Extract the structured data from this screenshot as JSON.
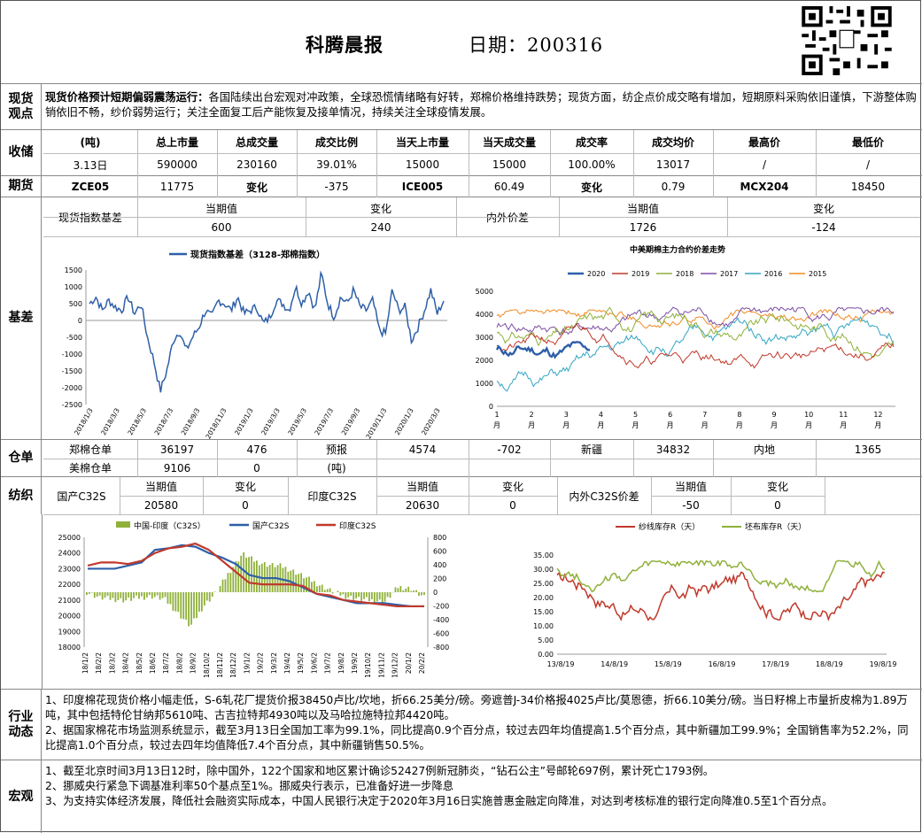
{
  "header": {
    "title": "科腾晨报",
    "date": "日期：200316"
  },
  "spot": {
    "label": "现货观点",
    "lead": "现货价格预计短期偏弱震荡运行：",
    "body": "各国陆续出台宏观对冲政策，全球恐慌情绪略有好转，郑棉价格维持跌势；现货方面，纺企点价成交略有增加，短期原料采购依旧谨慎，下游整体购销依旧不畅，纱价弱势运行；关注全面复工后产能恢复及接单情况，持续关注全球疫情发展。"
  },
  "storage": {
    "label": "收储",
    "headers": [
      "(吨)",
      "总上市量",
      "总成交量",
      "成交比例",
      "当天上市量",
      "当天成交量",
      "成交率",
      "成交均价",
      "最高价",
      "最低价"
    ],
    "values": [
      "3.13日",
      "590000",
      "230160",
      "39.01%",
      "15000",
      "15000",
      "100.00%",
      "13017",
      "/",
      "/"
    ]
  },
  "futures": {
    "label": "期货",
    "values": [
      "ZCE05",
      "11775",
      "变化",
      "-375",
      "ICE005",
      "60.49",
      "变化",
      "0.79",
      "MCX204",
      "18450"
    ]
  },
  "basis": {
    "label": "基差",
    "spot_index_label": "现货指数基差",
    "inner_outer_label": "内外价差",
    "col_current": "当期值",
    "col_change": "变化",
    "spot_current": "600",
    "spot_change": "240",
    "io_current": "1726",
    "io_change": "-124",
    "chart1": {
      "legend": "现货指数基差（3128-郑棉指数）",
      "yticks": [
        "1500",
        "1000",
        "500",
        "0",
        "-500",
        "-1000",
        "-1500",
        "-2000",
        "-2500"
      ],
      "xticks": [
        "2018/1/3",
        "2018/3/3",
        "2018/5/3",
        "2018/7/3",
        "2018/9/3",
        "2018/11/3",
        "2019/1/3",
        "2019/3/3",
        "2019/5/3",
        "2019/7/3",
        "2019/9/3",
        "2019/11/3",
        "2020/1/3",
        "2020/3/3"
      ]
    },
    "chart2": {
      "title": "中美期棉主力合约价差走势",
      "series": [
        "2020",
        "2019",
        "2018",
        "2017",
        "2016",
        "2015"
      ],
      "colors": [
        "#2e5fa8",
        "#c0392b",
        "#8fb13a",
        "#7b4ea3",
        "#33a6c2",
        "#f08a24"
      ],
      "yticks": [
        "5000",
        "4000",
        "3000",
        "2000",
        "1000",
        "0"
      ],
      "xticks": [
        "1",
        "2",
        "3",
        "4",
        "5",
        "6",
        "7",
        "8",
        "9",
        "10",
        "11",
        "12"
      ],
      "xunit": "月"
    }
  },
  "warehouse": {
    "label": "仓单",
    "r1": [
      "郑棉仓单",
      "36197",
      "476",
      "预报",
      "4574",
      "-702",
      "新疆",
      "34832",
      "内地",
      "1365"
    ],
    "r2": [
      "美棉仓单",
      "9106",
      "0",
      "(吨)"
    ]
  },
  "textile": {
    "label": "纺织",
    "cells": [
      "国产C32S",
      "当期值",
      "变化",
      "印度C32S",
      "当期值",
      "变化",
      "内外C32S价差",
      "当期值",
      "变化"
    ],
    "vals": [
      "20580",
      "0",
      "20630",
      "0",
      "-50",
      "0"
    ],
    "chart3": {
      "legend": [
        "中国-印度（C32S）",
        "国产C32S",
        "印度C32S"
      ],
      "yleft": [
        "25000",
        "24000",
        "23000",
        "22000",
        "21000",
        "20000",
        "19000",
        "18000"
      ],
      "yright": [
        "800",
        "600",
        "400",
        "200",
        "0",
        "-200",
        "-400",
        "-600",
        "-800"
      ],
      "xticks": [
        "18/1/2",
        "18/2/2",
        "18/3/2",
        "18/4/2",
        "18/5/2",
        "18/6/2",
        "18/7/2",
        "18/8/2",
        "18/9/2",
        "18/10/2",
        "18/11/2",
        "18/12/2",
        "19/1/2",
        "19/2/2",
        "19/3/2",
        "19/4/2",
        "19/5/2",
        "19/6/2",
        "19/7/2",
        "19/8/2",
        "19/9/2",
        "19/10/2",
        "19/11/2",
        "19/12/2",
        "20/1/2",
        "20/2/2"
      ]
    },
    "chart4": {
      "legend": [
        "纱线库存R（天）",
        "坯布库存R（天）"
      ],
      "yticks": [
        "35.00",
        "30.00",
        "25.00",
        "20.00",
        "15.00",
        "10.00",
        "5.00",
        "0.00"
      ],
      "xticks": [
        "13/8/19",
        "14/8/19",
        "15/8/19",
        "16/8/19",
        "17/8/19",
        "18/8/19",
        "19/8/19"
      ]
    }
  },
  "industry": {
    "label": "行业动态",
    "p1": "1、印度棉花现货价格小幅走低，S-6轧花厂提货价报38450卢比/坎地，折66.25美分/磅。旁遮普J-34价格报4025卢比/莫恩德，折66.10美分/磅。当日籽棉上市量折皮棉为1.89万吨，其中包括特伦甘纳邦5610吨、古吉拉特邦4930吨以及马哈拉施特拉邦4420吨。",
    "p2": "2、据国家棉花市场监测系统显示，截至3月13日全国加工率为99.1%，同比提高0.9个百分点，较过去四年均值提高1.5个百分点，其中新疆加工99.9%；全国销售率为52.2%，同比提高1.0个百分点，较过去四年均值降低7.4个百分点，其中新疆销售50.5%。"
  },
  "macro": {
    "label": "宏观",
    "p1": "1、截至北京时间3月13日12时，除中国外，122个国家和地区累计确诊52427例新冠肺炎，“钻石公主”号邮轮697例，累计死亡1793例。",
    "p2": "2、挪威央行紧急下调基准利率50个基点至1%。挪威央行表示，已准备好进一步降息",
    "p3": "3、为支持实体经济发展，降低社会融资实际成本，中国人民银行决定于2020年3月16日实施普惠金融定向降准，对达到考核标准的银行定向降准0.5至1个百分点。"
  }
}
